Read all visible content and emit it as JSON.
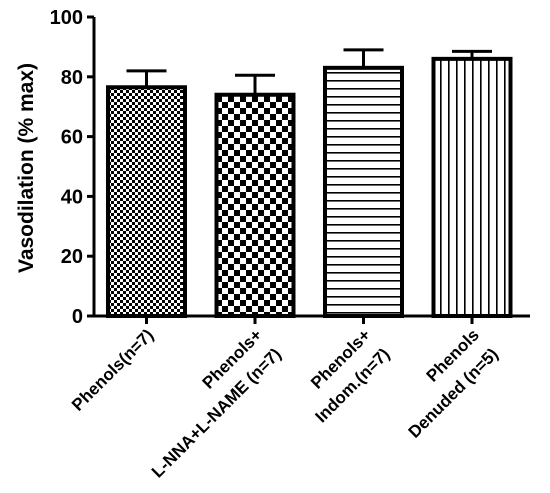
{
  "chart_data": {
    "type": "bar",
    "ylabel": "Vasodilation (% max)",
    "xlabel": "",
    "ylim": [
      0,
      100
    ],
    "yticks": [
      0,
      20,
      40,
      60,
      80,
      100
    ],
    "grid": false,
    "categories": [
      [
        "Phenols(n=7)"
      ],
      [
        "Phenols+",
        "L-NNA+L-NAME (n=7)"
      ],
      [
        "Phenols+",
        "Indom.(n=7)"
      ],
      [
        "Phenols",
        "Denuded (n=5)"
      ]
    ],
    "values": [
      76.5,
      74,
      83,
      86
    ],
    "errors": [
      5.5,
      6.5,
      6,
      2.5
    ],
    "patterns": [
      "fine-checker",
      "coarse-checker",
      "horizontal-lines",
      "vertical-lines"
    ]
  }
}
